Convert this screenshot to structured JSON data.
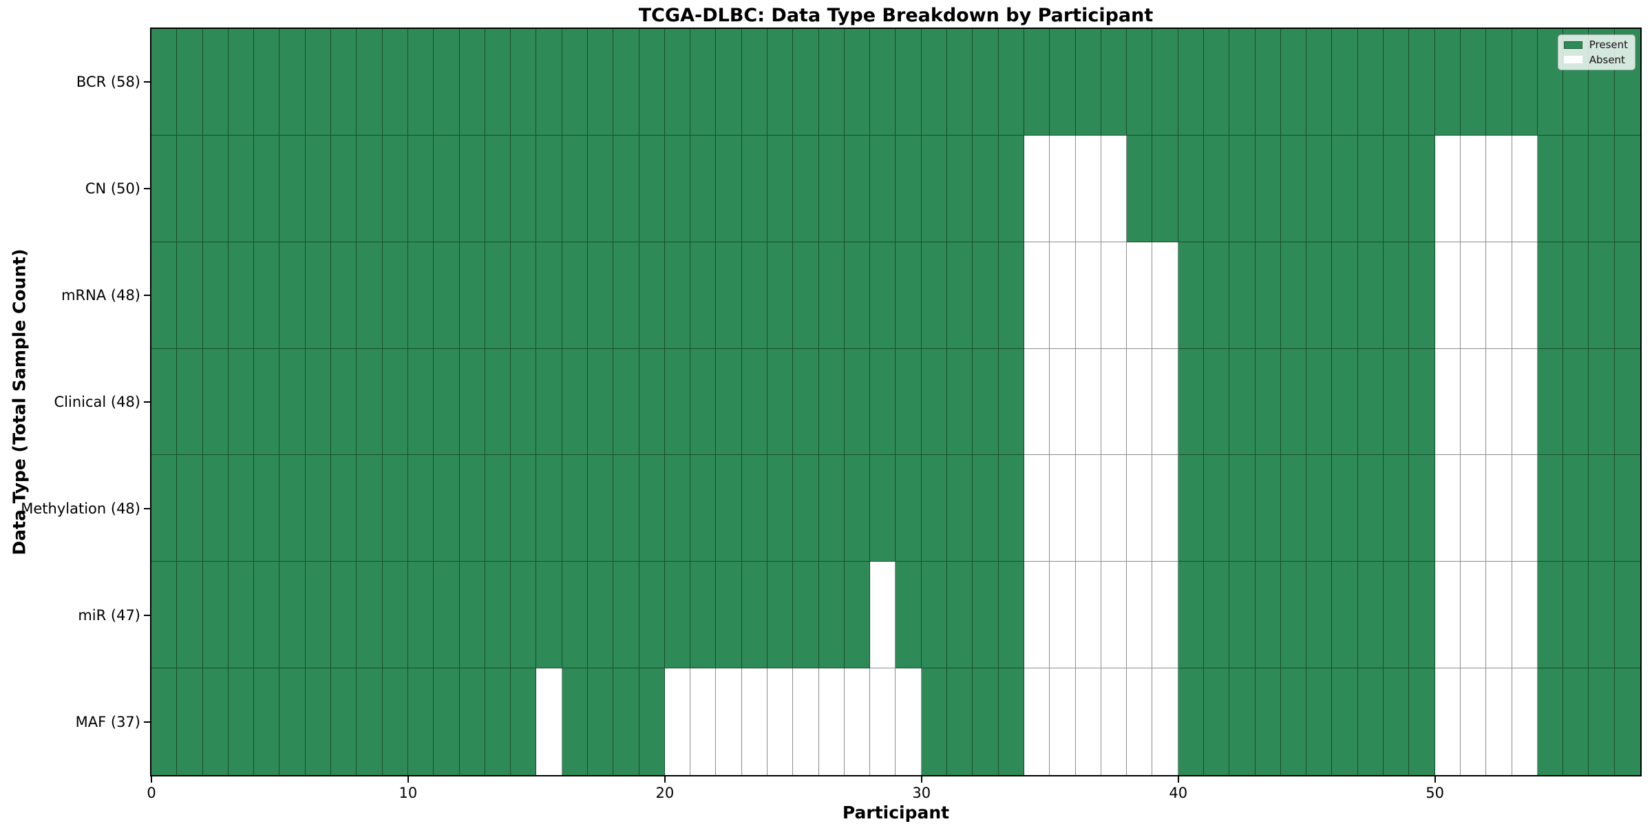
{
  "chart_data": {
    "type": "heatmap",
    "title": "TCGA-DLBC: Data Type Breakdown by Participant",
    "xlabel": "Participant",
    "ylabel": "Data Type (Total Sample Count)",
    "n_participants": 58,
    "x_ticks": [
      0,
      10,
      20,
      30,
      40,
      50
    ],
    "grid": true,
    "legend_position": "upper right",
    "rows": [
      {
        "label": "BCR (58)",
        "data_type": "BCR",
        "present_count": 58,
        "absent_participants": []
      },
      {
        "label": "CN (50)",
        "data_type": "CN",
        "present_count": 50,
        "absent_participants": [
          34,
          35,
          36,
          37,
          50,
          51,
          52,
          53
        ]
      },
      {
        "label": "mRNA (48)",
        "data_type": "mRNA",
        "present_count": 48,
        "absent_participants": [
          34,
          35,
          36,
          37,
          38,
          39,
          50,
          51,
          52,
          53
        ]
      },
      {
        "label": "Clinical (48)",
        "data_type": "Clinical",
        "present_count": 48,
        "absent_participants": [
          34,
          35,
          36,
          37,
          38,
          39,
          50,
          51,
          52,
          53
        ]
      },
      {
        "label": "Methylation (48)",
        "data_type": "Methylation",
        "present_count": 48,
        "absent_participants": [
          34,
          35,
          36,
          37,
          38,
          39,
          50,
          51,
          52,
          53
        ]
      },
      {
        "label": "miR (47)",
        "data_type": "miR",
        "present_count": 47,
        "absent_participants": [
          28,
          34,
          35,
          36,
          37,
          38,
          39,
          50,
          51,
          52,
          53
        ]
      },
      {
        "label": "MAF (37)",
        "data_type": "MAF",
        "present_count": 37,
        "absent_participants": [
          15,
          20,
          21,
          22,
          23,
          24,
          25,
          26,
          27,
          28,
          29,
          34,
          35,
          36,
          37,
          38,
          39,
          50,
          51,
          52,
          53
        ]
      }
    ],
    "legend": [
      {
        "label": "Present",
        "color": "#2e8b57"
      },
      {
        "label": "Absent",
        "color": "#ffffff"
      }
    ],
    "colors": {
      "present": "#2e8b57",
      "absent": "#ffffff",
      "cell_edge": "rgba(0,0,0,0.45)",
      "spine": "#000000",
      "legend_bg": "rgba(255,255,255,0.8)",
      "legend_border": "#b0b0b0",
      "text": "#000000"
    }
  }
}
